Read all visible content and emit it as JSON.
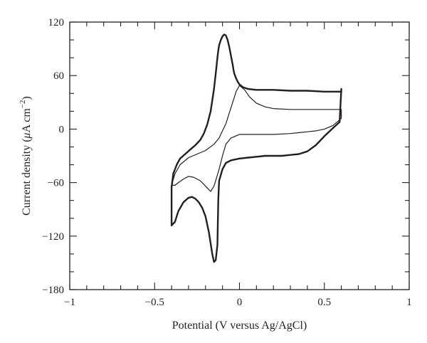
{
  "chart_data": {
    "type": "line",
    "title": "",
    "xlabel": "Potential (V versus Ag/AgCl)",
    "ylabel": {
      "prefix": "Current density (",
      "mu": "μ",
      "unit": "A cm",
      "exp": "−2",
      "suffix": ")"
    },
    "xlim": [
      -1,
      1
    ],
    "ylim": [
      -180,
      120
    ],
    "xticks": [
      -1,
      -0.5,
      0,
      0.5,
      1
    ],
    "xtick_labels": [
      "−1",
      "−0.5",
      "0",
      "0.5",
      "1"
    ],
    "yticks": [
      -180,
      -120,
      -60,
      0,
      60,
      120
    ],
    "ytick_labels": [
      "−180",
      "−120",
      "−60",
      "0",
      "60",
      "120"
    ],
    "x_minor_step": 0.1,
    "y_minor_step": 20,
    "grid": false,
    "legend": "none",
    "series": [
      {
        "line_width": "thick",
        "color": "#231f20",
        "x": [
          -0.4,
          -0.39,
          -0.37,
          -0.35,
          -0.32,
          -0.29,
          -0.26,
          -0.23,
          -0.21,
          -0.19,
          -0.17,
          -0.15,
          -0.14,
          -0.13,
          -0.125,
          -0.12,
          -0.11,
          -0.1,
          -0.09,
          -0.08,
          -0.07,
          -0.06,
          -0.05,
          -0.04,
          -0.035,
          -0.03,
          -0.02,
          -0.01,
          0.0,
          0.02,
          0.05,
          0.1,
          0.15,
          0.2,
          0.3,
          0.4,
          0.5,
          0.55,
          0.6,
          0.6,
          0.59,
          0.55,
          0.5,
          0.45,
          0.4,
          0.35,
          0.3,
          0.25,
          0.2,
          0.15,
          0.1,
          0.05,
          0.0,
          -0.05,
          -0.08,
          -0.1,
          -0.12,
          -0.125,
          -0.13,
          -0.14,
          -0.15,
          -0.16,
          -0.18,
          -0.2,
          -0.22,
          -0.24,
          -0.26,
          -0.28,
          -0.3,
          -0.33,
          -0.36,
          -0.38,
          -0.4,
          -0.4
        ],
        "y": [
          -65,
          -50,
          -40,
          -33,
          -28,
          -23,
          -18,
          -12,
          -5,
          5,
          20,
          45,
          62,
          80,
          88,
          94,
          100,
          104,
          106,
          105,
          100,
          92,
          82,
          72,
          66,
          62,
          57,
          53,
          50,
          47,
          45,
          44,
          44,
          44,
          43,
          43,
          42,
          42,
          42,
          45,
          8,
          1,
          -8,
          -18,
          -25,
          -28,
          -29,
          -30,
          -30,
          -30,
          -31,
          -32,
          -33,
          -35,
          -38,
          -45,
          -58,
          -80,
          -130,
          -147,
          -149,
          -140,
          -116,
          -98,
          -88,
          -82,
          -78,
          -76,
          -77,
          -82,
          -92,
          -104,
          -108,
          -65
        ]
      },
      {
        "line_width": "thin",
        "color": "#231f20",
        "x": [
          -0.4,
          -0.38,
          -0.35,
          -0.3,
          -0.25,
          -0.2,
          -0.15,
          -0.12,
          -0.1,
          -0.08,
          -0.06,
          -0.04,
          -0.02,
          0.0,
          0.03,
          0.06,
          0.1,
          0.15,
          0.2,
          0.3,
          0.4,
          0.5,
          0.6,
          0.6,
          0.55,
          0.5,
          0.45,
          0.4,
          0.35,
          0.3,
          0.2,
          0.1,
          0.0,
          -0.05,
          -0.08,
          -0.1,
          -0.12,
          -0.15,
          -0.17,
          -0.2,
          -0.23,
          -0.27,
          -0.3,
          -0.33,
          -0.36,
          -0.38,
          -0.4
        ],
        "y": [
          -63,
          -50,
          -40,
          -32,
          -28,
          -24,
          -17,
          -10,
          -2,
          6,
          18,
          30,
          42,
          49,
          44,
          36,
          29,
          25,
          23,
          22,
          22,
          22,
          22,
          12,
          4,
          0,
          -2,
          -3,
          -4,
          -5,
          -6,
          -6,
          -6,
          -10,
          -17,
          -30,
          -45,
          -64,
          -70,
          -64,
          -58,
          -54,
          -53,
          -56,
          -60,
          -63,
          -63
        ]
      }
    ]
  }
}
